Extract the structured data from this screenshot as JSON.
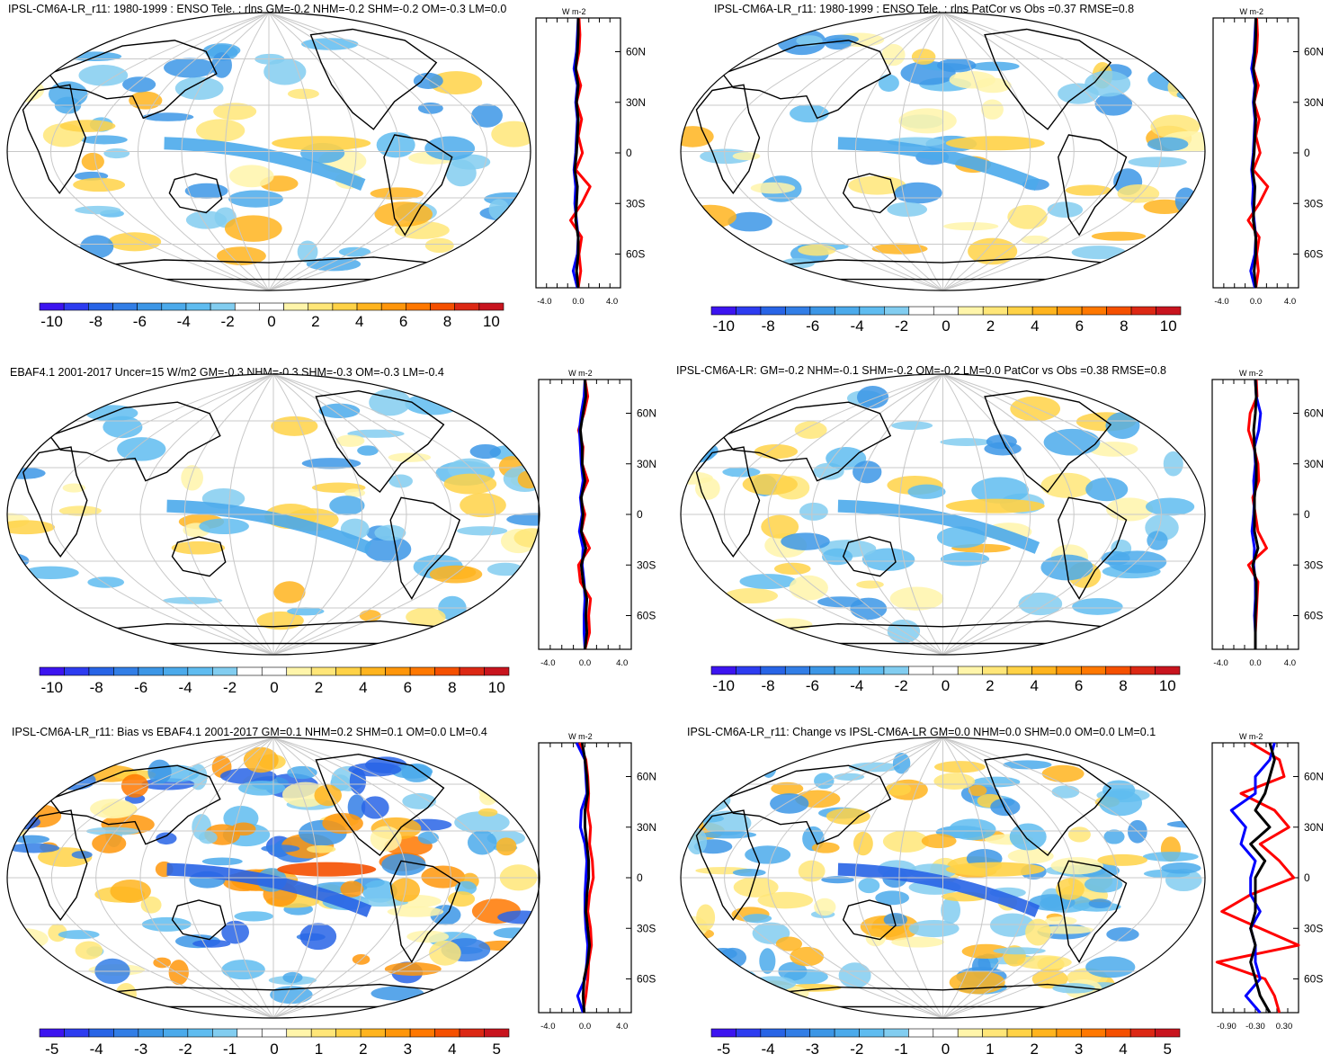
{
  "colors": {
    "palette": [
      "#3c14f0",
      "#2d3cf0",
      "#2864e6",
      "#327ee6",
      "#3c96e6",
      "#4baaeb",
      "#5fbcf0",
      "#82cdf0",
      "#ffffff",
      "#ffffff",
      "#fff5aa",
      "#ffe678",
      "#ffd246",
      "#ffb41e",
      "#ff960a",
      "#ff7800",
      "#f55000",
      "#dc2814",
      "#c8141e"
    ],
    "map_ocean": "#ffffff",
    "coast": "#000000",
    "grid": "#c8c8c8",
    "line_red": "#ff0000",
    "line_blue": "#0000ff",
    "line_black": "#000000"
  },
  "panels": [
    {
      "title": "IPSL-CM6A-LR_r11: 1980-1999 : ENSO Tele. : rlns GM=-0.2 NHM=-0.2 SHM=-0.2 OM=-0.3 LM=0.0",
      "colorbar_labels": [
        "-10",
        "-8",
        "-6",
        "-4",
        "-2",
        "0",
        "2",
        "4",
        "6",
        "8",
        "10"
      ],
      "profile_unit": "W m-2",
      "profile_ticks": [
        "-4.0",
        "0.0",
        "4.0"
      ],
      "lat_labels": [
        "60N",
        "30N",
        "0",
        "30S",
        "60S"
      ]
    },
    {
      "title": "IPSL-CM6A-LR_r11: 1980-1999 : ENSO Tele. : rlns PatCor vs Obs =0.37 RMSE=0.8",
      "colorbar_labels": [
        "-10",
        "-8",
        "-6",
        "-4",
        "-2",
        "0",
        "2",
        "4",
        "6",
        "8",
        "10"
      ],
      "profile_unit": "W m-2",
      "profile_ticks": [
        "-4.0",
        "0.0",
        "4.0"
      ],
      "lat_labels": [
        "60N",
        "30N",
        "0",
        "30S",
        "60S"
      ]
    },
    {
      "title": "EBAF4.1 2001-2017 Uncer=15 W/m2 GM=-0.3 NHM=-0.3 SHM=-0.3 OM=-0.3 LM=-0.4",
      "colorbar_labels": [
        "-10",
        "-8",
        "-6",
        "-4",
        "-2",
        "0",
        "2",
        "4",
        "6",
        "8",
        "10"
      ],
      "profile_unit": "W m-2",
      "profile_ticks": [
        "-4.0",
        "0.0",
        "4.0"
      ],
      "lat_labels": [
        "60N",
        "30N",
        "0",
        "30S",
        "60S"
      ]
    },
    {
      "title": "IPSL-CM6A-LR: GM=-0.2 NHM=-0.1 SHM=-0.2 OM=-0.2 LM=0.0 PatCor vs Obs =0.38 RMSE=0.8",
      "colorbar_labels": [
        "-10",
        "-8",
        "-6",
        "-4",
        "-2",
        "0",
        "2",
        "4",
        "6",
        "8",
        "10"
      ],
      "profile_unit": "W m-2",
      "profile_ticks": [
        "-4.0",
        "0.0",
        "4.0"
      ],
      "lat_labels": [
        "60N",
        "30N",
        "0",
        "30S",
        "60S"
      ]
    },
    {
      "title": "IPSL-CM6A-LR_r11: Bias vs EBAF4.1 2001-2017 GM=0.1 NHM=0.2 SHM=0.1 OM=0.0 LM=0.4",
      "colorbar_labels": [
        "-5",
        "-4",
        "-3",
        "-2",
        "-1",
        "0",
        "1",
        "2",
        "3",
        "4",
        "5"
      ],
      "profile_unit": "W m-2",
      "profile_ticks": [
        "-4.0",
        "0.0",
        "4.0"
      ],
      "lat_labels": [
        "60N",
        "30N",
        "0",
        "30S",
        "60S"
      ]
    },
    {
      "title": "IPSL-CM6A-LR_r11: Change vs IPSL-CM6A-LR GM=0.0 NHM=0.0 SHM=0.0 OM=0.0 LM=0.1",
      "colorbar_labels": [
        "-5",
        "-4",
        "-3",
        "-2",
        "-1",
        "0",
        "1",
        "2",
        "3",
        "4",
        "5"
      ],
      "profile_unit": "W m-2",
      "profile_ticks": [
        "-0.90",
        "-0.30",
        "0.30"
      ],
      "lat_labels": [
        "60N",
        "30N",
        "0",
        "30S",
        "60S"
      ]
    }
  ],
  "chart_data": [
    {
      "type": "heatmap",
      "title": "IPSL-CM6A-LR_r11: 1980-1999 : ENSO Tele. : rlns GM=-0.2 NHM=-0.2 SHM=-0.2 OM=-0.3 LM=0.0",
      "colorbar_range": [
        -10,
        10
      ],
      "colorbar_labels": [
        "-10",
        "-8",
        "-6",
        "-4",
        "-2",
        "0",
        "2",
        "4",
        "6",
        "8",
        "10"
      ],
      "zonal_profile": {
        "type": "line",
        "xlim": [
          -5,
          5
        ],
        "xticks": [
          -4.0,
          0.0,
          4.0
        ],
        "ylim": [
          -80,
          80
        ],
        "yticks": [
          "60N",
          "30N",
          "0",
          "30S",
          "60S"
        ],
        "unit": "W m-2",
        "lat": [
          80,
          70,
          60,
          50,
          40,
          30,
          20,
          10,
          0,
          -10,
          -20,
          -30,
          -40,
          -50,
          -60,
          -70,
          -80
        ],
        "series": [
          {
            "name": "red",
            "values": [
              0.1,
              0.2,
              0.1,
              -0.3,
              0.3,
              -0.2,
              0.4,
              0.0,
              0.5,
              -0.3,
              1.4,
              0.4,
              -0.9,
              0.4,
              0.1,
              0.3,
              0.0
            ]
          },
          {
            "name": "blue",
            "values": [
              0.0,
              -0.1,
              -0.2,
              -0.5,
              -0.1,
              -0.3,
              -0.1,
              -0.2,
              -0.3,
              -0.5,
              -0.3,
              -0.4,
              -0.2,
              0.0,
              -0.1,
              -0.6,
              -0.1
            ]
          },
          {
            "name": "black",
            "values": [
              0.0,
              0.0,
              -0.1,
              -0.3,
              0.0,
              -0.2,
              0.0,
              -0.1,
              -0.2,
              -0.4,
              -0.1,
              -0.2,
              -0.3,
              0.0,
              0.0,
              -0.2,
              0.0
            ]
          }
        ]
      }
    },
    {
      "type": "heatmap",
      "title": "IPSL-CM6A-LR_r11: 1980-1999 : ENSO Tele. : rlns PatCor vs Obs =0.37 RMSE=0.8",
      "colorbar_range": [
        -10,
        10
      ],
      "colorbar_labels": [
        "-10",
        "-8",
        "-6",
        "-4",
        "-2",
        "0",
        "2",
        "4",
        "6",
        "8",
        "10"
      ],
      "zonal_profile": {
        "type": "line",
        "xlim": [
          -5,
          5
        ],
        "xticks": [
          -4.0,
          0.0,
          4.0
        ],
        "ylim": [
          -80,
          80
        ],
        "yticks": [
          "60N",
          "30N",
          "0",
          "30S",
          "60S"
        ],
        "unit": "W m-2",
        "lat": [
          80,
          70,
          60,
          50,
          40,
          30,
          20,
          10,
          0,
          -10,
          -20,
          -30,
          -40,
          -50,
          -60,
          -70,
          -80
        ],
        "series": [
          {
            "name": "red",
            "values": [
              0.1,
              0.2,
              0.1,
              -0.3,
              0.3,
              -0.2,
              0.4,
              0.0,
              0.5,
              -0.3,
              1.4,
              0.4,
              -0.9,
              0.4,
              0.1,
              0.3,
              0.0
            ]
          },
          {
            "name": "blue",
            "values": [
              0.0,
              -0.1,
              -0.2,
              -0.5,
              -0.1,
              -0.3,
              -0.1,
              -0.2,
              -0.3,
              -0.5,
              -0.3,
              -0.4,
              -0.2,
              0.0,
              -0.1,
              -0.6,
              -0.1
            ]
          },
          {
            "name": "black",
            "values": [
              0.0,
              0.0,
              -0.1,
              -0.3,
              0.0,
              -0.2,
              0.0,
              -0.1,
              -0.2,
              -0.4,
              -0.1,
              -0.2,
              -0.3,
              0.0,
              0.0,
              -0.2,
              0.0
            ]
          }
        ]
      }
    },
    {
      "type": "heatmap",
      "title": "EBAF4.1 2001-2017 Uncer=15 W/m2 GM=-0.3 NHM=-0.3 SHM=-0.3 OM=-0.3 LM=-0.4",
      "colorbar_range": [
        -10,
        10
      ],
      "colorbar_labels": [
        "-10",
        "-8",
        "-6",
        "-4",
        "-2",
        "0",
        "2",
        "4",
        "6",
        "8",
        "10"
      ],
      "zonal_profile": {
        "type": "line",
        "xlim": [
          -5,
          5
        ],
        "xticks": [
          -4.0,
          0.0,
          4.0
        ],
        "ylim": [
          -80,
          80
        ],
        "yticks": [
          "60N",
          "30N",
          "0",
          "30S",
          "60S"
        ],
        "unit": "W m-2",
        "lat": [
          80,
          70,
          60,
          50,
          40,
          30,
          20,
          10,
          0,
          -10,
          -20,
          -30,
          -40,
          -50,
          -60,
          -70,
          -80
        ],
        "series": [
          {
            "name": "red",
            "values": [
              0.0,
              0.3,
              -0.1,
              -0.7,
              -0.2,
              -0.3,
              0.3,
              -0.5,
              0.0,
              -0.4,
              0.5,
              -0.7,
              -0.5,
              0.6,
              0.4,
              0.5,
              0.0
            ]
          },
          {
            "name": "blue",
            "values": [
              0.0,
              -0.1,
              -0.4,
              -0.6,
              -0.5,
              -0.4,
              -0.2,
              -0.5,
              -0.3,
              -0.6,
              -0.2,
              -0.3,
              -0.1,
              0.0,
              -0.1,
              -0.1,
              0.0
            ]
          },
          {
            "name": "black",
            "values": [
              0.0,
              0.1,
              -0.2,
              -0.5,
              -0.3,
              -0.3,
              0.0,
              -0.4,
              -0.2,
              -0.4,
              0.1,
              -0.4,
              -0.2,
              0.2,
              0.1,
              0.2,
              0.0
            ]
          }
        ]
      }
    },
    {
      "type": "heatmap",
      "title": "IPSL-CM6A-LR: GM=-0.2 NHM=-0.1 SHM=-0.2 OM=-0.2 LM=0.0 PatCor vs Obs =0.38 RMSE=0.8",
      "colorbar_range": [
        -10,
        10
      ],
      "colorbar_labels": [
        "-10",
        "-8",
        "-6",
        "-4",
        "-2",
        "0",
        "2",
        "4",
        "6",
        "8",
        "10"
      ],
      "zonal_profile": {
        "type": "line",
        "xlim": [
          -5,
          5
        ],
        "xticks": [
          -4.0,
          0.0,
          4.0
        ],
        "ylim": [
          -80,
          80
        ],
        "yticks": [
          "60N",
          "30N",
          "0",
          "30S",
          "60S"
        ],
        "unit": "W m-2",
        "lat": [
          80,
          70,
          60,
          50,
          40,
          30,
          20,
          10,
          0,
          -10,
          -20,
          -30,
          -40,
          -50,
          -60,
          -70,
          -80
        ],
        "series": [
          {
            "name": "red",
            "values": [
              0.1,
              0.2,
              -0.6,
              -0.8,
              -0.2,
              0.3,
              0.4,
              -0.3,
              0.0,
              0.3,
              1.3,
              -0.8,
              0.3,
              0.2,
              0.1,
              0.0,
              0.0
            ]
          },
          {
            "name": "blue",
            "values": [
              0.0,
              0.1,
              0.6,
              0.4,
              -0.1,
              0.0,
              -0.2,
              -0.1,
              -0.2,
              -0.4,
              -0.1,
              -0.2,
              0.0,
              0.0,
              -0.1,
              0.0,
              0.0
            ]
          },
          {
            "name": "black",
            "values": [
              0.0,
              0.1,
              0.0,
              -0.2,
              -0.1,
              0.1,
              0.1,
              -0.1,
              -0.1,
              -0.1,
              0.3,
              -0.3,
              0.1,
              0.1,
              0.0,
              0.0,
              0.0
            ]
          }
        ]
      }
    },
    {
      "type": "heatmap",
      "title": "IPSL-CM6A-LR_r11: Bias vs EBAF4.1 2001-2017 GM=0.1 NHM=0.2 SHM=0.1 OM=0.0 LM=0.4",
      "colorbar_range": [
        -5,
        5
      ],
      "colorbar_labels": [
        "-5",
        "-4",
        "-3",
        "-2",
        "-1",
        "0",
        "1",
        "2",
        "3",
        "4",
        "5"
      ],
      "zonal_profile": {
        "type": "line",
        "xlim": [
          -5,
          5
        ],
        "xticks": [
          -4.0,
          0.0,
          4.0
        ],
        "ylim": [
          -80,
          80
        ],
        "yticks": [
          "60N",
          "30N",
          "0",
          "30S",
          "60S"
        ],
        "unit": "W m-2",
        "lat": [
          80,
          70,
          60,
          50,
          40,
          30,
          20,
          10,
          0,
          -10,
          -20,
          -30,
          -40,
          -50,
          -60,
          -70,
          -80
        ],
        "series": [
          {
            "name": "red",
            "values": [
              -0.6,
              0.1,
              0.3,
              0.4,
              0.3,
              0.6,
              0.5,
              0.8,
              0.9,
              0.5,
              0.3,
              0.6,
              0.7,
              0.4,
              0.3,
              0.1,
              -0.2
            ]
          },
          {
            "name": "blue",
            "values": [
              -0.9,
              0.0,
              0.1,
              0.2,
              -0.4,
              -0.5,
              0.0,
              0.2,
              0.1,
              0.0,
              0.0,
              0.1,
              0.3,
              0.2,
              0.0,
              -0.8,
              -0.2
            ]
          },
          {
            "name": "black",
            "values": [
              -0.3,
              0.0,
              0.2,
              0.3,
              0.0,
              0.0,
              0.2,
              0.4,
              0.4,
              0.2,
              0.1,
              0.3,
              0.5,
              0.3,
              -0.1,
              -0.2,
              -0.1
            ]
          }
        ]
      }
    },
    {
      "type": "heatmap",
      "title": "IPSL-CM6A-LR_r11: Change vs IPSL-CM6A-LR GM=0.0 NHM=0.0 SHM=0.0 OM=0.0 LM=0.1",
      "colorbar_range": [
        -5,
        5
      ],
      "colorbar_labels": [
        "-5",
        "-4",
        "-3",
        "-2",
        "-1",
        "0",
        "1",
        "2",
        "3",
        "4",
        "5"
      ],
      "zonal_profile": {
        "type": "line",
        "xlim": [
          -1.2,
          0.6
        ],
        "xticks": [
          -0.9,
          -0.3,
          0.3
        ],
        "ylim": [
          -80,
          80
        ],
        "yticks": [
          "60N",
          "30N",
          "0",
          "30S",
          "60S"
        ],
        "unit": "W m-2",
        "lat": [
          80,
          70,
          60,
          50,
          40,
          30,
          20,
          10,
          0,
          -10,
          -20,
          -30,
          -40,
          -50,
          -60,
          -70,
          -80
        ],
        "series": [
          {
            "name": "red",
            "values": [
              -0.4,
              0.2,
              0.3,
              -0.6,
              0.1,
              0.4,
              -0.2,
              0.2,
              0.5,
              -0.4,
              -1.0,
              -0.2,
              0.6,
              -1.1,
              -0.1,
              0.1,
              0.2
            ]
          },
          {
            "name": "blue",
            "values": [
              0.1,
              0.0,
              -0.3,
              -0.3,
              -0.8,
              -0.5,
              -0.6,
              -0.3,
              -0.4,
              -0.4,
              -0.2,
              -0.4,
              -0.3,
              -0.3,
              -0.2,
              -0.5,
              -0.2
            ]
          },
          {
            "name": "black",
            "values": [
              0.0,
              0.1,
              0.0,
              -0.1,
              -0.3,
              0.0,
              -0.4,
              -0.1,
              -0.3,
              -0.3,
              -0.3,
              -0.4,
              -0.3,
              -0.4,
              -0.3,
              -0.2,
              0.0
            ]
          }
        ]
      }
    }
  ]
}
